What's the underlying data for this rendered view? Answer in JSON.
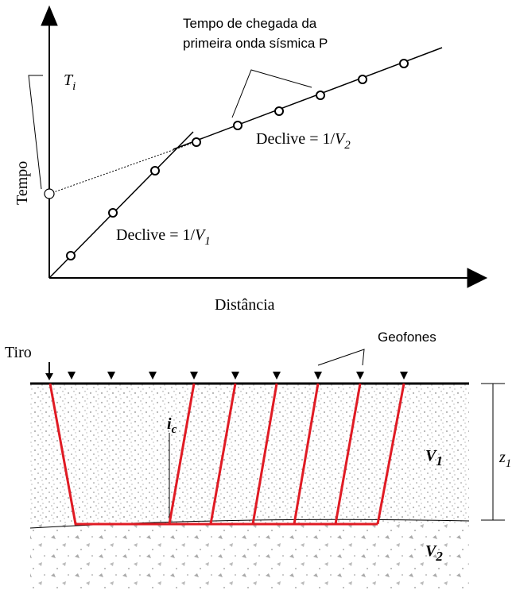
{
  "graph": {
    "annotation_lines": [
      "Tempo de chegada da",
      "primeira onda sísmica P"
    ],
    "intercept_symbol": "T",
    "intercept_subscript": "i",
    "y_axis_label": "Tempo",
    "x_axis_label": "Distância",
    "slope_2": {
      "text": "Declive = 1/",
      "symbol": "V",
      "subscript": "2"
    },
    "slope_1": {
      "text": "Declive = 1/",
      "symbol": "V",
      "subscript": "1"
    }
  },
  "section": {
    "shot_label": "Tiro",
    "geophones_label": "Geofones",
    "angle_symbol": "i",
    "angle_subscript": "c",
    "layer1_symbol": "V",
    "layer1_subscript": "1",
    "layer2_symbol": "V",
    "layer2_subscript": "2",
    "depth_symbol": "z",
    "depth_subscript": "1"
  }
}
